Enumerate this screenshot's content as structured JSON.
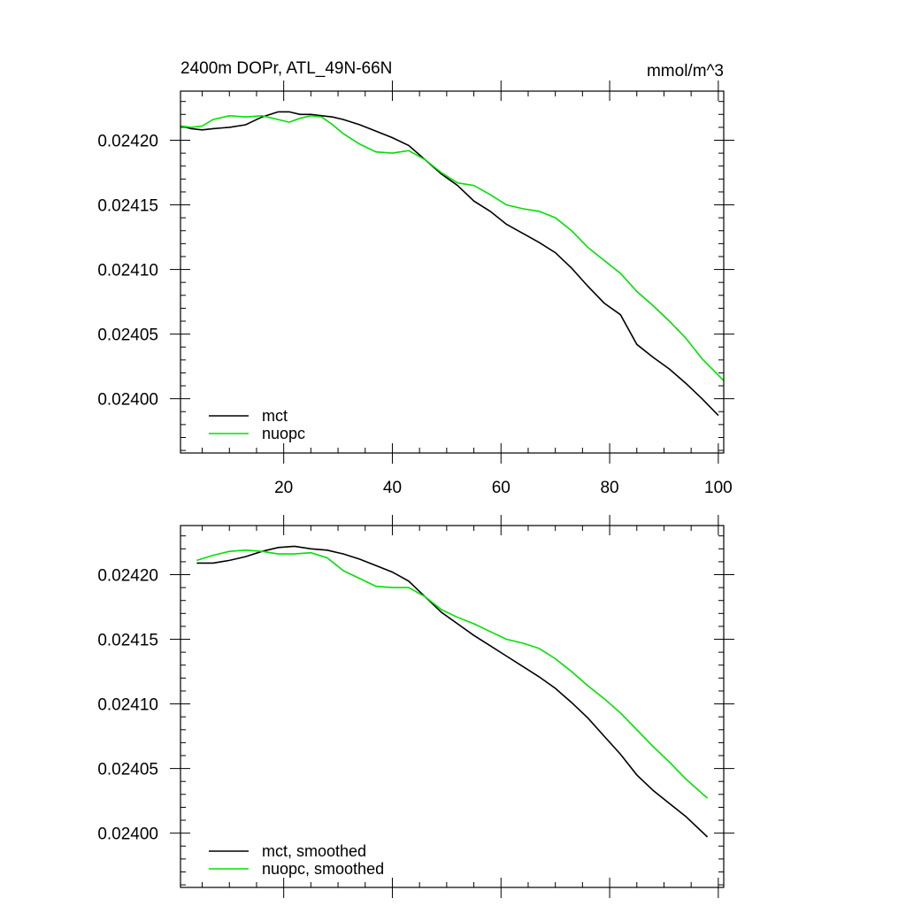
{
  "chart_data": [
    {
      "type": "line",
      "title": "2400m DOPr, ATL_49N-66N",
      "units": "mmol/m^3",
      "xlim": [
        1,
        101
      ],
      "ylim": [
        0.023958,
        0.024238
      ],
      "xticks": [
        20,
        40,
        60,
        80,
        100
      ],
      "xtick_labels": [
        "20",
        "40",
        "60",
        "80",
        "100"
      ],
      "yticks": [
        0.024,
        0.02405,
        0.0241,
        0.02415,
        0.0242
      ],
      "ytick_labels": [
        "0.02400",
        "0.02405",
        "0.02410",
        "0.02415",
        "0.02420"
      ],
      "legend_position": "bottom-left",
      "series": [
        {
          "name": "mct",
          "color": "#000000",
          "x": [
            1,
            3,
            5,
            7,
            10,
            13,
            16,
            19,
            21,
            23,
            25,
            27,
            29,
            31,
            34,
            37,
            40,
            43,
            46,
            49,
            52,
            55,
            58,
            61,
            64,
            67,
            70,
            73,
            76,
            79,
            82,
            85,
            88,
            91,
            94,
            97,
            100
          ],
          "y": [
            0.024211,
            0.024209,
            0.024208,
            0.024209,
            0.02421,
            0.024212,
            0.024218,
            0.024222,
            0.024222,
            0.02422,
            0.02422,
            0.024219,
            0.024218,
            0.024216,
            0.024212,
            0.024207,
            0.024202,
            0.024196,
            0.024185,
            0.024174,
            0.024165,
            0.024153,
            0.024145,
            0.024135,
            0.024128,
            0.024121,
            0.024113,
            0.024101,
            0.024087,
            0.024074,
            0.024065,
            0.024042,
            0.024032,
            0.024023,
            0.024012,
            0.024,
            0.023987
          ]
        },
        {
          "name": "nuopc",
          "color": "#00e000",
          "x": [
            1,
            3,
            5,
            7,
            10,
            13,
            16,
            19,
            21,
            23,
            25,
            27,
            29,
            31,
            34,
            37,
            40,
            43,
            46,
            49,
            52,
            55,
            58,
            61,
            64,
            67,
            70,
            73,
            76,
            79,
            82,
            85,
            88,
            91,
            94,
            97,
            101
          ],
          "y": [
            0.024211,
            0.02421,
            0.024211,
            0.024216,
            0.024219,
            0.024218,
            0.024219,
            0.024216,
            0.024214,
            0.024217,
            0.024219,
            0.024218,
            0.024212,
            0.024205,
            0.024197,
            0.024191,
            0.02419,
            0.024192,
            0.024185,
            0.024175,
            0.024167,
            0.024165,
            0.024158,
            0.02415,
            0.024147,
            0.024145,
            0.02414,
            0.02413,
            0.024117,
            0.024107,
            0.024097,
            0.024083,
            0.024072,
            0.02406,
            0.024047,
            0.024031,
            0.024014
          ]
        }
      ]
    },
    {
      "type": "line",
      "title": "",
      "units": "",
      "xlim": [
        1,
        101
      ],
      "ylim": [
        0.023958,
        0.024238
      ],
      "xticks": [
        20,
        40,
        60,
        80,
        100
      ],
      "xtick_labels": [],
      "yticks": [
        0.024,
        0.02405,
        0.0241,
        0.02415,
        0.0242
      ],
      "ytick_labels": [
        "0.02400",
        "0.02405",
        "0.02410",
        "0.02415",
        "0.02420"
      ],
      "legend_position": "bottom-left",
      "series": [
        {
          "name": "mct, smoothed",
          "color": "#000000",
          "x": [
            4,
            7,
            10,
            13,
            16,
            19,
            22,
            25,
            28,
            31,
            34,
            37,
            40,
            43,
            46,
            49,
            52,
            55,
            58,
            61,
            64,
            67,
            70,
            73,
            76,
            79,
            82,
            85,
            88,
            91,
            94,
            98
          ],
          "y": [
            0.024209,
            0.024209,
            0.024211,
            0.024214,
            0.024218,
            0.024221,
            0.024222,
            0.02422,
            0.024219,
            0.024216,
            0.024212,
            0.024207,
            0.024202,
            0.024195,
            0.024183,
            0.024171,
            0.024162,
            0.024153,
            0.024145,
            0.024137,
            0.024129,
            0.024121,
            0.024112,
            0.024101,
            0.024089,
            0.024075,
            0.024061,
            0.024045,
            0.024033,
            0.024023,
            0.024013,
            0.023997
          ]
        },
        {
          "name": "nuopc, smoothed",
          "color": "#00e000",
          "x": [
            4,
            7,
            10,
            13,
            16,
            19,
            22,
            25,
            28,
            31,
            34,
            37,
            40,
            43,
            46,
            49,
            52,
            55,
            58,
            61,
            64,
            67,
            70,
            73,
            76,
            79,
            82,
            85,
            88,
            91,
            94,
            98
          ],
          "y": [
            0.024211,
            0.024215,
            0.024218,
            0.024219,
            0.024218,
            0.024216,
            0.024216,
            0.024217,
            0.024213,
            0.024203,
            0.024197,
            0.024191,
            0.02419,
            0.02419,
            0.024183,
            0.024173,
            0.024167,
            0.024162,
            0.024156,
            0.02415,
            0.024147,
            0.024143,
            0.024135,
            0.024125,
            0.024114,
            0.024104,
            0.024093,
            0.02408,
            0.024067,
            0.024055,
            0.024042,
            0.024027
          ]
        }
      ]
    }
  ]
}
